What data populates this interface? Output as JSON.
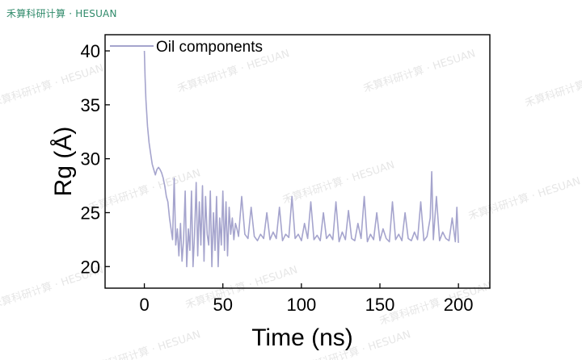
{
  "brand": {
    "text": "禾算科研计算 · HESUAN"
  },
  "watermark": {
    "text": "禾算科研计算 · HESUAN"
  },
  "colors": {
    "series": "#a5a4cd",
    "axis": "#000000",
    "brand": "#2f8a6a"
  },
  "chart_data": {
    "type": "line",
    "title": "",
    "xlabel": "Time (ns)",
    "ylabel": "Rg (Å)",
    "xlim": [
      -25,
      220
    ],
    "ylim": [
      18,
      41.5
    ],
    "xticks": [
      0,
      50,
      100,
      150,
      200
    ],
    "yticks": [
      20,
      25,
      30,
      35,
      40
    ],
    "grid": false,
    "legend": {
      "placement": "top-left"
    },
    "series": [
      {
        "name": "Oil components",
        "x": [
          0,
          0.5,
          1,
          2,
          3,
          4,
          5,
          6,
          7,
          8,
          9,
          10,
          11,
          12,
          13,
          14,
          15,
          16,
          17,
          18,
          19,
          20,
          21,
          22,
          23,
          24,
          25,
          26,
          27,
          28,
          29,
          30,
          31,
          32,
          33,
          34,
          35,
          36,
          37,
          38,
          39,
          40,
          41,
          42,
          43,
          44,
          45,
          46,
          47,
          48,
          49,
          50,
          51,
          52,
          53,
          54,
          55,
          56,
          57,
          58,
          59,
          60,
          62,
          64,
          66,
          68,
          70,
          72,
          74,
          76,
          78,
          80,
          82,
          84,
          86,
          88,
          90,
          92,
          94,
          96,
          98,
          100,
          102,
          104,
          106,
          108,
          110,
          112,
          114,
          116,
          118,
          120,
          122,
          124,
          126,
          128,
          130,
          132,
          134,
          136,
          138,
          140,
          142,
          144,
          146,
          148,
          150,
          152,
          154,
          156,
          158,
          160,
          162,
          164,
          166,
          168,
          170,
          172,
          174,
          176,
          178,
          180,
          182,
          183,
          184,
          186,
          188,
          190,
          192,
          194,
          196,
          198,
          199,
          200
        ],
        "y": [
          40.0,
          37.5,
          35.5,
          33.0,
          31.5,
          30.5,
          29.5,
          29.0,
          28.5,
          29.0,
          29.2,
          29.0,
          28.7,
          28.2,
          27.5,
          26.5,
          26.0,
          24.5,
          23.5,
          22.5,
          28.2,
          22.0,
          23.5,
          21.0,
          24.0,
          20.5,
          22.5,
          27.0,
          20.0,
          23.5,
          21.5,
          27.0,
          20.0,
          23.0,
          27.8,
          21.0,
          26.0,
          22.0,
          27.5,
          20.5,
          26.5,
          23.0,
          22.0,
          27.0,
          20.0,
          25.0,
          21.5,
          26.5,
          20.0,
          24.5,
          22.0,
          27.0,
          21.5,
          26.0,
          21.0,
          25.5,
          23.0,
          24.5,
          22.5,
          24.0,
          23.5,
          22.8,
          26.5,
          23.0,
          22.6,
          25.5,
          22.8,
          22.4,
          23.0,
          22.6,
          25.0,
          22.5,
          23.2,
          22.6,
          25.5,
          22.4,
          23.0,
          22.7,
          26.5,
          22.6,
          23.0,
          22.4,
          24.0,
          22.6,
          26.0,
          22.5,
          22.9,
          22.4,
          25.0,
          22.6,
          23.0,
          22.5,
          26.0,
          22.3,
          23.2,
          22.5,
          25.2,
          22.6,
          22.4,
          24.0,
          22.6,
          26.5,
          22.3,
          23.0,
          22.5,
          25.0,
          22.4,
          23.5,
          22.6,
          22.3,
          26.0,
          22.5,
          23.0,
          22.4,
          25.0,
          22.6,
          22.4,
          23.2,
          22.5,
          26.0,
          22.4,
          22.8,
          24.5,
          28.8,
          22.5,
          26.5,
          22.4,
          23.2,
          22.6,
          22.4,
          24.5,
          22.3,
          25.5,
          22.2
        ]
      }
    ]
  }
}
